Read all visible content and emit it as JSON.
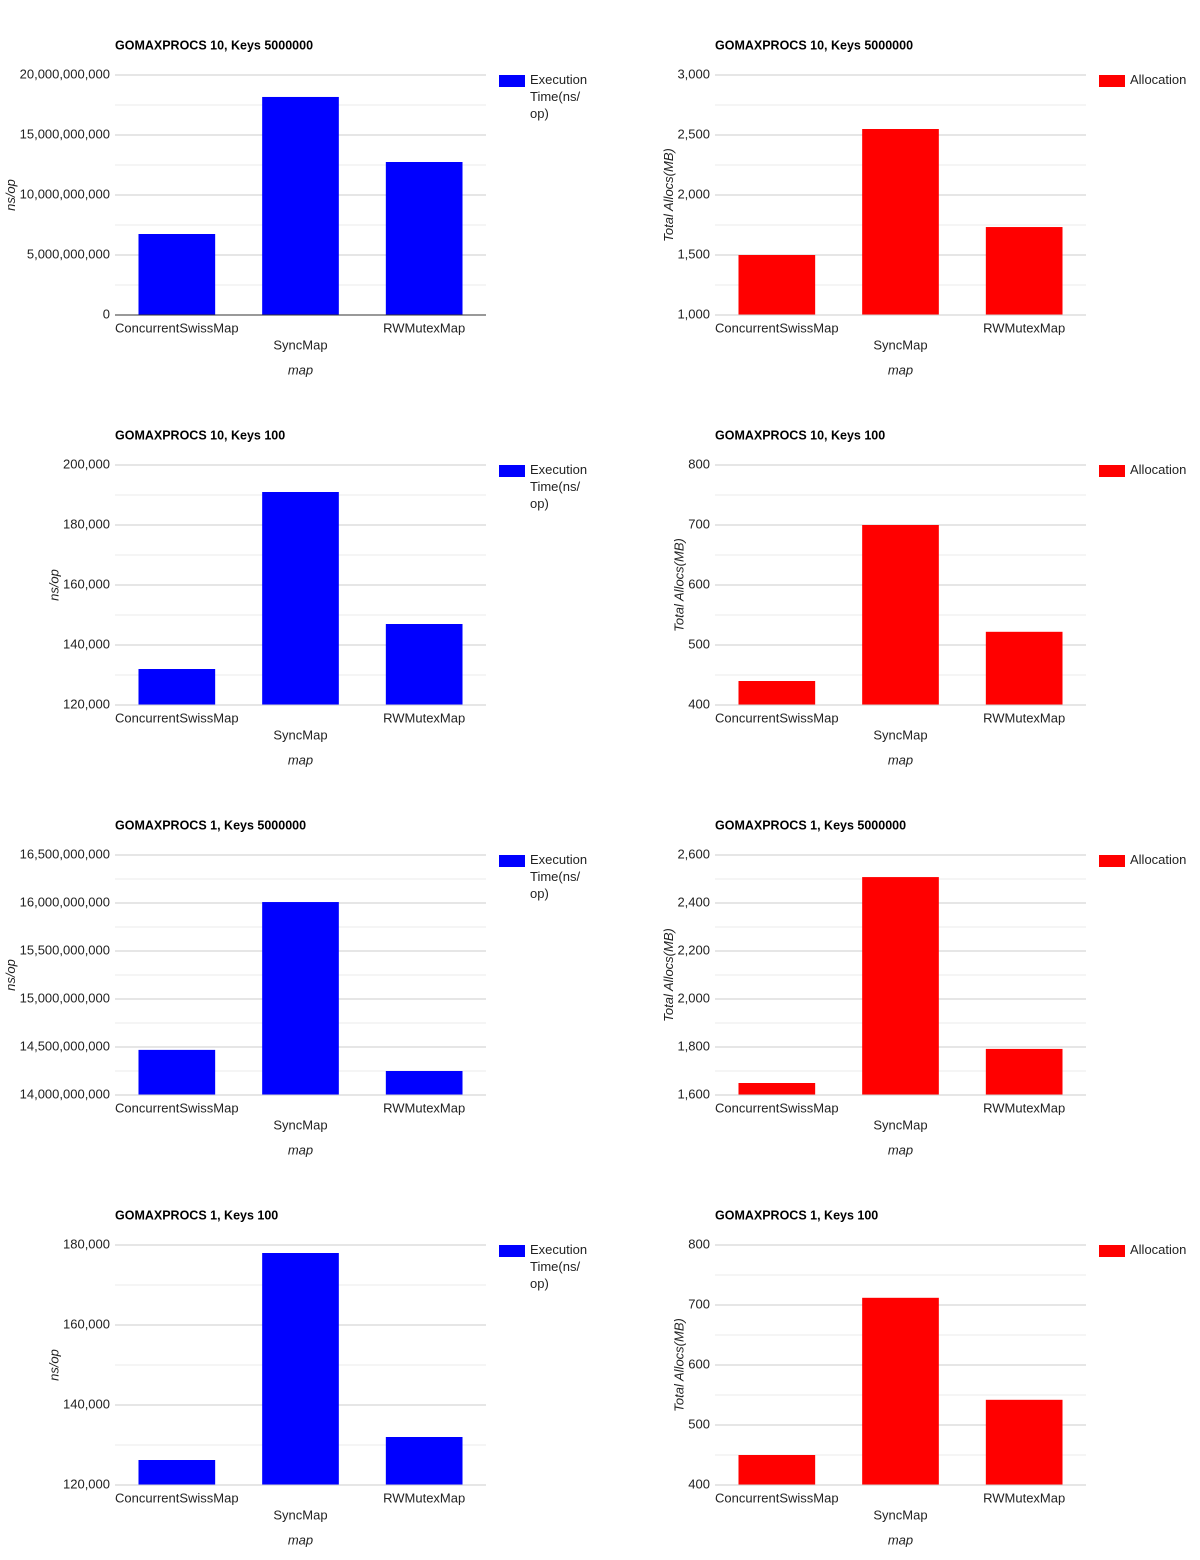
{
  "chart_data": [
    {
      "type": "bar",
      "title": "GOMAXPROCS 10, Keys 5000000",
      "x_label": "map",
      "y_label": "ns/op",
      "categories": [
        "ConcurrentSwissMap",
        "SyncMap",
        "RWMutexMap"
      ],
      "series": [
        {
          "name": "Execution Time(ns/op)",
          "color": "#0000ff",
          "values": [
            6750000000,
            18170000000,
            12750000000
          ]
        }
      ],
      "ylim": [
        0,
        20000000000
      ],
      "yticks": [
        {
          "value": 0,
          "label": "0"
        },
        {
          "value": 5000000000,
          "label": "5,000,000,000"
        },
        {
          "value": 10000000000,
          "label": "10,000,000,000"
        },
        {
          "value": 15000000000,
          "label": "15,000,000,000"
        },
        {
          "value": 20000000000,
          "label": "20,000,000,000"
        }
      ],
      "grid": true,
      "legend": "right"
    },
    {
      "type": "bar",
      "title": "GOMAXPROCS 10, Keys 5000000",
      "x_label": "map",
      "y_label": "Total Allocs(MB)",
      "categories": [
        "ConcurrentSwissMap",
        "SyncMap",
        "RWMutexMap"
      ],
      "series": [
        {
          "name": "Allocation",
          "color": "#ff0000",
          "values": [
            1500,
            2550,
            1733
          ]
        }
      ],
      "ylim": [
        1000,
        3000
      ],
      "yticks": [
        {
          "value": 1000,
          "label": "1,000"
        },
        {
          "value": 1500,
          "label": "1,500"
        },
        {
          "value": 2000,
          "label": "2,000"
        },
        {
          "value": 2500,
          "label": "2,500"
        },
        {
          "value": 3000,
          "label": "3,000"
        }
      ],
      "grid": true,
      "legend": "right"
    },
    {
      "type": "bar",
      "title": "GOMAXPROCS 10, Keys 100",
      "x_label": "map",
      "y_label": "ns/op",
      "categories": [
        "ConcurrentSwissMap",
        "SyncMap",
        "RWMutexMap"
      ],
      "series": [
        {
          "name": "Execution Time(ns/op)",
          "color": "#0000ff",
          "values": [
            132000,
            191000,
            147000
          ]
        }
      ],
      "ylim": [
        120000,
        200000
      ],
      "yticks": [
        {
          "value": 120000,
          "label": "120,000"
        },
        {
          "value": 140000,
          "label": "140,000"
        },
        {
          "value": 160000,
          "label": "160,000"
        },
        {
          "value": 180000,
          "label": "180,000"
        },
        {
          "value": 200000,
          "label": "200,000"
        }
      ],
      "grid": true,
      "legend": "right"
    },
    {
      "type": "bar",
      "title": "GOMAXPROCS 10, Keys 100",
      "x_label": "map",
      "y_label": "Total Allocs(MB)",
      "categories": [
        "ConcurrentSwissMap",
        "SyncMap",
        "RWMutexMap"
      ],
      "series": [
        {
          "name": "Allocation",
          "color": "#ff0000",
          "values": [
            440,
            700,
            522
          ]
        }
      ],
      "ylim": [
        400,
        800
      ],
      "yticks": [
        400,
        500,
        600,
        700,
        800
      ],
      "grid": true,
      "legend": "right"
    },
    {
      "type": "bar",
      "title": "GOMAXPROCS 1, Keys 5000000",
      "x_label": "map",
      "y_label": "ns/op",
      "categories": [
        "ConcurrentSwissMap",
        "SyncMap",
        "RWMutexMap"
      ],
      "series": [
        {
          "name": "Execution Time(ns/op)",
          "color": "#0000ff",
          "values": [
            14470000000,
            16010000000,
            14250000000
          ]
        }
      ],
      "ylim": [
        14000000000,
        16500000000
      ],
      "yticks": [
        {
          "value": 14000000000,
          "label": "14,000,000,000"
        },
        {
          "value": 14500000000,
          "label": "14,500,000,000"
        },
        {
          "value": 15000000000,
          "label": "15,000,000,000"
        },
        {
          "value": 15500000000,
          "label": "15,500,000,000"
        },
        {
          "value": 16000000000,
          "label": "16,000,000,000"
        },
        {
          "value": 16500000000,
          "label": "16,500,000,000"
        }
      ],
      "grid": true,
      "legend": "right"
    },
    {
      "type": "bar",
      "title": "GOMAXPROCS 1, Keys 5000000",
      "x_label": "map",
      "y_label": "Total Allocs(MB)",
      "categories": [
        "ConcurrentSwissMap",
        "SyncMap",
        "RWMutexMap"
      ],
      "series": [
        {
          "name": "Allocation",
          "color": "#ff0000",
          "values": [
            1650,
            2508,
            1792
          ]
        }
      ],
      "ylim": [
        1600,
        2600
      ],
      "yticks": [
        {
          "value": 1600,
          "label": "1,600"
        },
        {
          "value": 1800,
          "label": "1,800"
        },
        {
          "value": 2000,
          "label": "2,000"
        },
        {
          "value": 2200,
          "label": "2,200"
        },
        {
          "value": 2400,
          "label": "2,400"
        },
        {
          "value": 2600,
          "label": "2,600"
        }
      ],
      "grid": true,
      "legend": "right"
    },
    {
      "type": "bar",
      "title": "GOMAXPROCS 1, Keys 100",
      "x_label": "map",
      "y_label": "ns/op",
      "categories": [
        "ConcurrentSwissMap",
        "SyncMap",
        "RWMutexMap"
      ],
      "series": [
        {
          "name": "Execution Time(ns/op)",
          "color": "#0000ff",
          "values": [
            126250,
            178000,
            132000
          ]
        }
      ],
      "ylim": [
        120000,
        180000
      ],
      "yticks": [
        {
          "value": 120000,
          "label": "120,000"
        },
        {
          "value": 140000,
          "label": "140,000"
        },
        {
          "value": 160000,
          "label": "160,000"
        },
        {
          "value": 180000,
          "label": "180,000"
        }
      ],
      "grid": true,
      "legend": "right"
    },
    {
      "type": "bar",
      "title": "GOMAXPROCS 1, Keys 100",
      "x_label": "map",
      "y_label": "Total Allocs(MB)",
      "categories": [
        "ConcurrentSwissMap",
        "SyncMap",
        "RWMutexMap"
      ],
      "series": [
        {
          "name": "Allocation",
          "color": "#ff0000",
          "values": [
            450,
            712,
            542
          ]
        }
      ],
      "ylim": [
        400,
        800
      ],
      "yticks": [
        400,
        500,
        600,
        700,
        800
      ],
      "grid": true,
      "legend": "right"
    }
  ]
}
